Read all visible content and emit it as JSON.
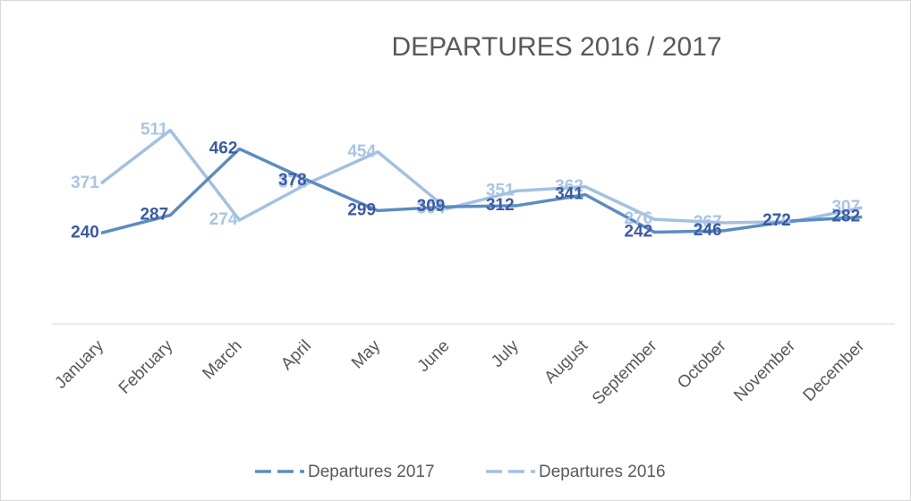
{
  "chart_data": {
    "type": "line",
    "title": "DEPARTURES 2016 / 2017",
    "categories": [
      "January",
      "February",
      "March",
      "April",
      "May",
      "June",
      "July",
      "August",
      "September",
      "October",
      "November",
      "December"
    ],
    "series": [
      {
        "name": "Departures 2017",
        "color": "#5b8cc2",
        "label_color": "#3b5ba8",
        "values": [
          240,
          287,
          462,
          378,
          299,
          309,
          312,
          341,
          242,
          246,
          272,
          282
        ]
      },
      {
        "name": "Departures 2016",
        "color": "#a3c0e3",
        "label_color": "#a9c4e6",
        "values": [
          371,
          511,
          274,
          372,
          454,
          304,
          351,
          362,
          276,
          267,
          270,
          307
        ]
      }
    ],
    "ylim": [
      0,
      600
    ],
    "legend": "bottom"
  }
}
